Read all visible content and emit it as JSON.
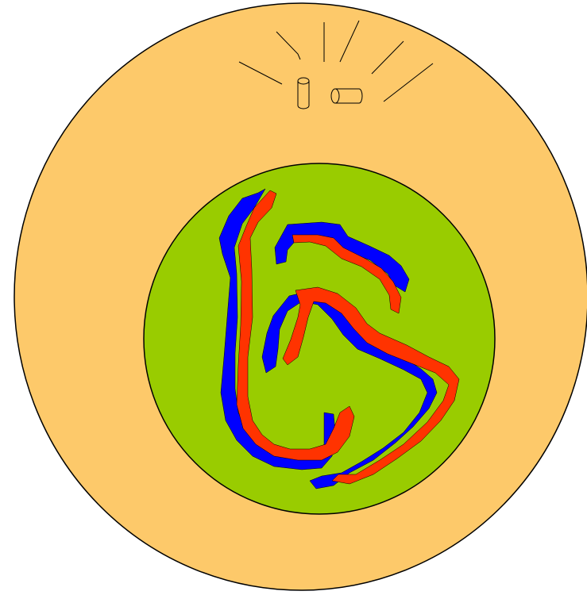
{
  "colors": {
    "background": "#ffffff",
    "outer_circle": "#fdc96a",
    "inner_circle": "#99cc00",
    "blue_strand": "#0000ff",
    "red_strand": "#ff3300",
    "outline": "#000000"
  },
  "icons": {
    "centriole_pair": "centriole-icon",
    "rays": "radiating-lines-icon"
  }
}
